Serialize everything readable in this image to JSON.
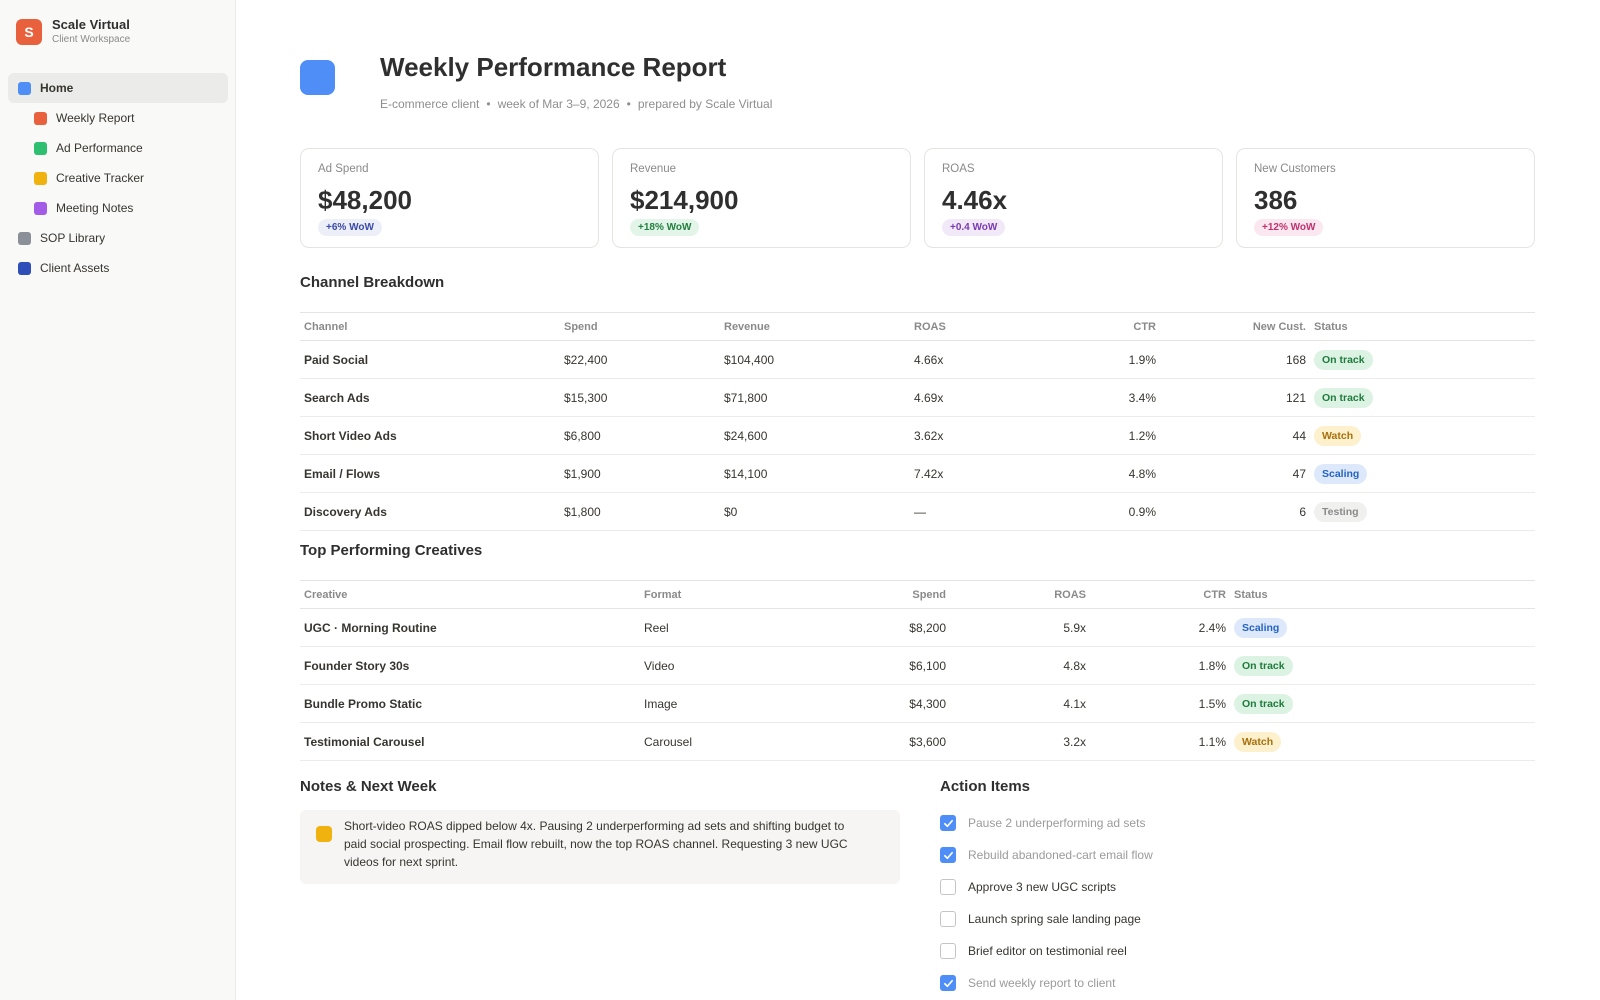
{
  "workspace": {
    "initial": "S",
    "name": "Scale Virtual",
    "subtitle": "Client Workspace"
  },
  "nav": [
    {
      "label": "Home",
      "color": "#4f8ef7",
      "level": 0,
      "active": true
    },
    {
      "label": "Weekly Report",
      "color": "#e8603c",
      "level": 1
    },
    {
      "label": "Ad Performance",
      "color": "#2fbf71",
      "level": 1
    },
    {
      "label": "Creative Tracker",
      "color": "#f0b20e",
      "level": 1
    },
    {
      "label": "Meeting Notes",
      "color": "#a35ce8",
      "level": 1
    },
    {
      "label": "SOP Library",
      "color": "#8a8f98",
      "level": 0
    },
    {
      "label": "Client Assets",
      "color": "#2f4fb8",
      "level": 0
    }
  ],
  "page": {
    "icon_color": "#4f8ef7",
    "title": "Weekly Performance Report",
    "subtitle_parts": [
      "E-commerce client",
      "week of Mar 3–9, 2026",
      "prepared by Scale Virtual"
    ],
    "separator": "•"
  },
  "kpis": [
    {
      "label": "Ad Spend",
      "value": "$48,200",
      "delta": "+6% WoW",
      "delta_fg": "#3b4aa8",
      "delta_bg": "#eceff8"
    },
    {
      "label": "Revenue",
      "value": "$214,900",
      "delta": "+18% WoW",
      "delta_fg": "#22803f",
      "delta_bg": "#e3f4e8"
    },
    {
      "label": "ROAS",
      "value": "4.46x",
      "delta": "+0.4 WoW",
      "delta_fg": "#7a3bb0",
      "delta_bg": "#f1e9f8"
    },
    {
      "label": "New Customers",
      "value": "386",
      "delta": "+12% WoW",
      "delta_fg": "#c0326f",
      "delta_bg": "#fbe7ef"
    }
  ],
  "status_styles": {
    "On track": {
      "fg": "#1f7a3c",
      "bg": "#dcf3e3"
    },
    "Watch": {
      "fg": "#a8700c",
      "bg": "#fdf0cc"
    },
    "Scaling": {
      "fg": "#2563c2",
      "bg": "#dde9fb"
    },
    "Testing": {
      "fg": "#8a8a8a",
      "bg": "#f0f0ef"
    }
  },
  "channel": {
    "title": "Channel Breakdown",
    "headers": [
      "Channel",
      "Spend",
      "Revenue",
      "ROAS",
      "CTR",
      "New Cust.",
      "Status"
    ],
    "rows": [
      {
        "channel": "Paid Social",
        "spend": "$22,400",
        "revenue": "$104,400",
        "roas": "4.66x",
        "ctr": "1.9%",
        "new_cust": "168",
        "status": "On track"
      },
      {
        "channel": "Search Ads",
        "spend": "$15,300",
        "revenue": "$71,800",
        "roas": "4.69x",
        "ctr": "3.4%",
        "new_cust": "121",
        "status": "On track"
      },
      {
        "channel": "Short Video Ads",
        "spend": "$6,800",
        "revenue": "$24,600",
        "roas": "3.62x",
        "ctr": "1.2%",
        "new_cust": "44",
        "status": "Watch"
      },
      {
        "channel": "Email / Flows",
        "spend": "$1,900",
        "revenue": "$14,100",
        "roas": "7.42x",
        "ctr": "4.8%",
        "new_cust": "47",
        "status": "Scaling"
      },
      {
        "channel": "Discovery Ads",
        "spend": "$1,800",
        "revenue": "$0",
        "roas": "—",
        "ctr": "0.9%",
        "new_cust": "6",
        "status": "Testing"
      }
    ]
  },
  "creatives": {
    "title": "Top Performing Creatives",
    "headers": [
      "Creative",
      "Format",
      "Spend",
      "ROAS",
      "CTR",
      "Status"
    ],
    "rows": [
      {
        "creative": "UGC · Morning Routine",
        "format": "Reel",
        "spend": "$8,200",
        "roas": "5.9x",
        "ctr": "2.4%",
        "status": "Scaling"
      },
      {
        "creative": "Founder Story 30s",
        "format": "Video",
        "spend": "$6,100",
        "roas": "4.8x",
        "ctr": "1.8%",
        "status": "On track"
      },
      {
        "creative": "Bundle Promo Static",
        "format": "Image",
        "spend": "$4,300",
        "roas": "4.1x",
        "ctr": "1.5%",
        "status": "On track"
      },
      {
        "creative": "Testimonial Carousel",
        "format": "Carousel",
        "spend": "$3,600",
        "roas": "3.2x",
        "ctr": "1.1%",
        "status": "Watch"
      }
    ]
  },
  "notes": {
    "title": "Notes & Next Week",
    "icon_color": "#f0b20e",
    "text": "Short-video ROAS dipped below 4x. Pausing 2 underperforming ad sets and shifting budget to paid social prospecting. Email flow rebuilt, now the top ROAS channel. Requesting 3 new UGC videos for next sprint."
  },
  "actions": {
    "title": "Action Items",
    "items": [
      {
        "text": "Pause 2 underperforming ad sets",
        "done": true
      },
      {
        "text": "Rebuild abandoned-cart email flow",
        "done": true
      },
      {
        "text": "Approve 3 new UGC scripts",
        "done": false
      },
      {
        "text": "Launch spring sale landing page",
        "done": false
      },
      {
        "text": "Brief editor on testimonial reel",
        "done": false
      },
      {
        "text": "Send weekly report to client",
        "done": true
      }
    ]
  }
}
